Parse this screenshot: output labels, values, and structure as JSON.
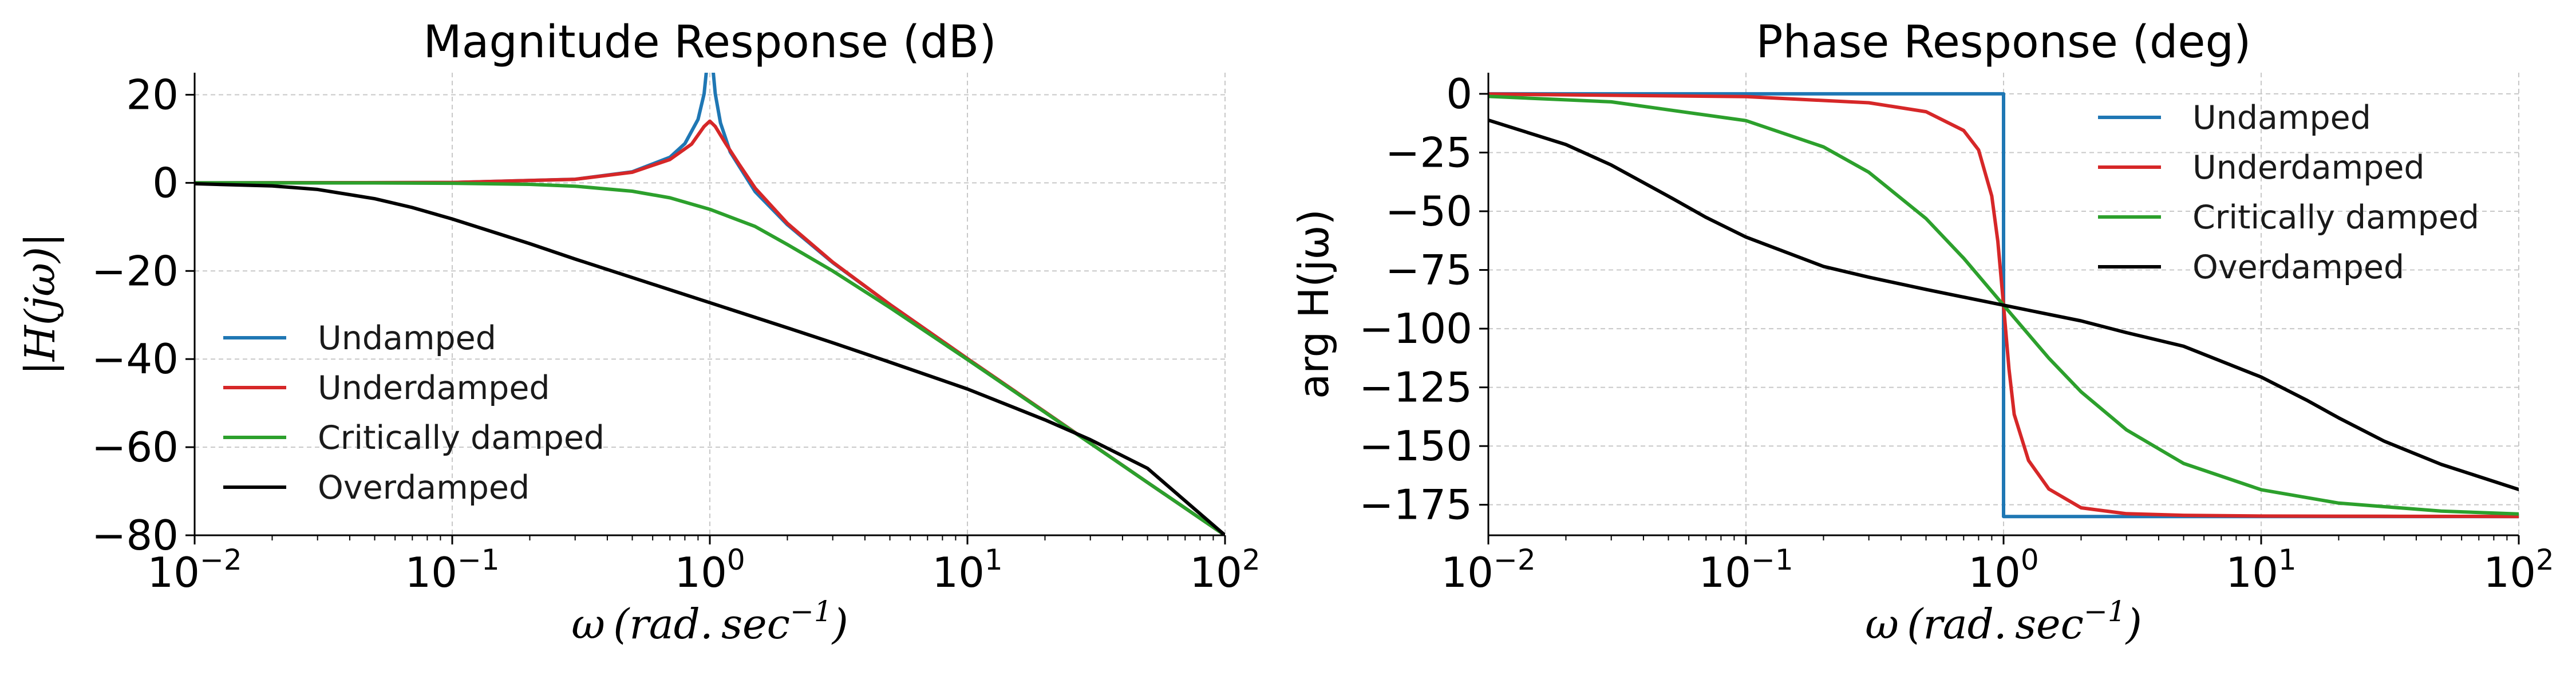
{
  "chart_data": [
    {
      "type": "line",
      "title": "Magnitude Response (dB)",
      "xlabel": "ω (rad. sec⁻¹)",
      "ylabel": "|H(jω)|",
      "xscale": "log",
      "xlim": [
        0.01,
        100
      ],
      "ylim": [
        -80,
        25
      ],
      "x_ticks": [
        0.01,
        0.1,
        1,
        10,
        100
      ],
      "x_tick_labels": [
        {
          "base": "10",
          "exp": "−2"
        },
        {
          "base": "10",
          "exp": "−1"
        },
        {
          "base": "10",
          "exp": "0"
        },
        {
          "base": "10",
          "exp": "1"
        },
        {
          "base": "10",
          "exp": "2"
        }
      ],
      "y_ticks": [
        20,
        0,
        -20,
        -40,
        -60,
        -80
      ],
      "y_tick_labels": [
        "20",
        "0",
        "−20",
        "−40",
        "−60",
        "−80"
      ],
      "grid": true,
      "legend_position": "center-left",
      "series": [
        {
          "name": "Undamped",
          "color": "#1f77b4",
          "x": [
            0.01,
            0.1,
            0.3,
            0.5,
            0.7,
            0.8,
            0.9,
            0.95,
            0.98,
            1.02,
            1.05,
            1.1,
            1.2,
            1.5,
            2,
            3,
            5,
            10,
            20,
            50,
            100
          ],
          "y": [
            0,
            0.09,
            0.82,
            2.5,
            5.8,
            8.9,
            14.4,
            20.2,
            28,
            28,
            20.2,
            13.6,
            7.0,
            -2.0,
            -9.5,
            -18.1,
            -27.6,
            -39.9,
            -52.0,
            -68.0,
            -80.0
          ]
        },
        {
          "name": "Underdamped",
          "color": "#d62728",
          "x": [
            0.01,
            0.1,
            0.3,
            0.5,
            0.7,
            0.85,
            0.95,
            1,
            1.05,
            1.15,
            1.3,
            1.5,
            2,
            3,
            5,
            10,
            20,
            50,
            100
          ],
          "y": [
            0,
            0.09,
            0.8,
            2.4,
            5.3,
            8.8,
            12.8,
            14.0,
            12.8,
            9.0,
            4.2,
            -1.2,
            -9.2,
            -18.0,
            -27.6,
            -39.9,
            -52.0,
            -68.0,
            -80.0
          ]
        },
        {
          "name": "Critically damped",
          "color": "#2ca02c",
          "x": [
            0.01,
            0.05,
            0.1,
            0.2,
            0.3,
            0.5,
            0.7,
            1,
            1.5,
            2,
            3,
            5,
            10,
            20,
            50,
            100
          ],
          "y": [
            0,
            -0.01,
            -0.09,
            -0.34,
            -0.75,
            -1.9,
            -3.4,
            -6.0,
            -9.9,
            -14.0,
            -20.0,
            -28.3,
            -40.1,
            -52.1,
            -68.0,
            -80.0
          ]
        },
        {
          "name": "Overdamped",
          "color": "#000000",
          "x": [
            0.01,
            0.02,
            0.03,
            0.05,
            0.07,
            0.1,
            0.2,
            0.3,
            0.5,
            1,
            2,
            3,
            5,
            10,
            20,
            30,
            50,
            100
          ],
          "y": [
            -0.2,
            -0.7,
            -1.5,
            -3.6,
            -5.6,
            -8.2,
            -13.8,
            -17.3,
            -21.5,
            -27.2,
            -32.9,
            -36.3,
            -40.7,
            -46.8,
            -53.8,
            -58.3,
            -64.8,
            -80.0
          ]
        }
      ]
    },
    {
      "type": "line",
      "title": "Phase Response (deg)",
      "xlabel": "ω (rad. sec⁻¹)",
      "ylabel": "arg H(jω)",
      "xscale": "log",
      "xlim": [
        0.01,
        100
      ],
      "ylim": [
        -188,
        9
      ],
      "x_ticks": [
        0.01,
        0.1,
        1,
        10,
        100
      ],
      "x_tick_labels": [
        {
          "base": "10",
          "exp": "−2"
        },
        {
          "base": "10",
          "exp": "−1"
        },
        {
          "base": "10",
          "exp": "0"
        },
        {
          "base": "10",
          "exp": "1"
        },
        {
          "base": "10",
          "exp": "2"
        }
      ],
      "y_ticks": [
        0,
        -25,
        -50,
        -75,
        -100,
        -125,
        -150,
        -175
      ],
      "y_tick_labels": [
        "0",
        "−25",
        "−50",
        "−75",
        "−100",
        "−125",
        "−150",
        "−175"
      ],
      "grid": true,
      "legend_position": "upper-right",
      "series": [
        {
          "name": "Undamped",
          "color": "#1f77b4",
          "x": [
            0.01,
            0.999,
            1.0,
            1.0,
            1.001,
            100
          ],
          "y": [
            0,
            0,
            0,
            -180,
            -180,
            -180
          ]
        },
        {
          "name": "Underdamped",
          "color": "#d62728",
          "x": [
            0.01,
            0.1,
            0.3,
            0.5,
            0.7,
            0.8,
            0.9,
            0.95,
            1,
            1.05,
            1.1,
            1.25,
            1.5,
            2,
            3,
            5,
            10,
            30,
            100
          ],
          "y": [
            -0.1,
            -1.2,
            -3.8,
            -7.6,
            -15.6,
            -23.9,
            -43.5,
            -62.8,
            -90,
            -117.2,
            -136.5,
            -156.1,
            -168.3,
            -176.3,
            -178.8,
            -179.5,
            -179.8,
            -179.9,
            -180
          ]
        },
        {
          "name": "Critically damped",
          "color": "#2ca02c",
          "x": [
            0.01,
            0.03,
            0.1,
            0.2,
            0.3,
            0.5,
            0.7,
            1,
            1.5,
            2,
            3,
            5,
            10,
            20,
            50,
            100
          ],
          "y": [
            -1.1,
            -3.4,
            -11.4,
            -22.6,
            -33.4,
            -53.1,
            -70.0,
            -90,
            -112.6,
            -126.9,
            -143.1,
            -157.4,
            -168.6,
            -174.3,
            -177.7,
            -178.9
          ]
        },
        {
          "name": "Overdamped",
          "color": "#000000",
          "x": [
            0.01,
            0.02,
            0.03,
            0.05,
            0.07,
            0.1,
            0.2,
            0.3,
            0.5,
            1,
            2,
            3,
            5,
            10,
            15,
            20,
            30,
            50,
            100
          ],
          "y": [
            -11.2,
            -21.6,
            -30.3,
            -43.6,
            -52.6,
            -61.0,
            -73.5,
            -78.1,
            -83.3,
            -90,
            -96.7,
            -101.7,
            -107.5,
            -120.6,
            -130.4,
            -138.0,
            -147.9,
            -157.8,
            -168.5
          ]
        }
      ]
    }
  ]
}
